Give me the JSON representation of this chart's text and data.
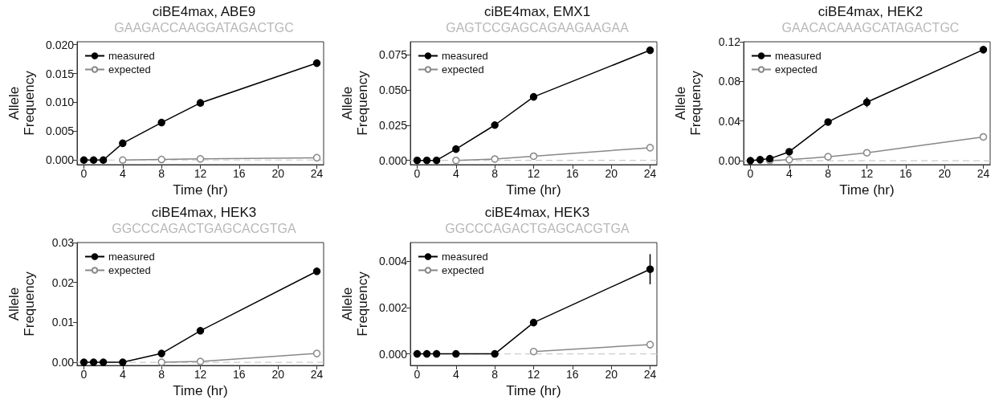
{
  "chart_data": [
    {
      "type": "line",
      "title": "ciBE4max, ABE9",
      "subtitle": "GAAGACCAAGGATAGACTGC",
      "xlabel": "Time (hr)",
      "ylabel": "Allele Frequency",
      "x": [
        0,
        1,
        2,
        4,
        8,
        12,
        24
      ],
      "series": [
        {
          "name": "measured",
          "color": "#000000",
          "values": [
            0,
            0,
            0,
            0.0029,
            0.0065,
            0.0099,
            0.0168
          ],
          "errors": [
            null,
            null,
            null,
            null,
            null,
            null,
            0.0004
          ]
        },
        {
          "name": "expected",
          "color": "#888888",
          "values": [
            null,
            null,
            null,
            0.0,
            0.0001,
            0.0002,
            0.0004
          ]
        }
      ],
      "xlim": [
        -0.7,
        24.7
      ],
      "xticks": [
        0,
        4,
        8,
        12,
        16,
        20,
        24
      ],
      "ylim": [
        -0.0008,
        0.0205
      ],
      "yticks": [
        {
          "value": 0,
          "label": "0.000"
        },
        {
          "value": 0.005,
          "label": "0.005"
        },
        {
          "value": 0.01,
          "label": "0.010"
        },
        {
          "value": 0.015,
          "label": "0.015"
        },
        {
          "value": 0.02,
          "label": "0.020"
        }
      ],
      "ref_lines": [
        {
          "axis": "y",
          "value": 0,
          "color": "#cccccc",
          "line_style": "dashed"
        }
      ],
      "legend": "top left",
      "marker": "circle",
      "grid": false
    },
    {
      "type": "line",
      "title": "ciBE4max, EMX1",
      "subtitle": "GAGTCCGAGCAGAAGAAGAA",
      "xlabel": "Time (hr)",
      "ylabel": "Allele Frequency",
      "x": [
        0,
        1,
        2,
        4,
        8,
        12,
        24
      ],
      "series": [
        {
          "name": "measured",
          "color": "#000000",
          "values": [
            0,
            0,
            0,
            0.008,
            0.025,
            0.045,
            0.078
          ],
          "errors": [
            null,
            null,
            null,
            null,
            null,
            null,
            0.0015
          ]
        },
        {
          "name": "expected",
          "color": "#888888",
          "values": [
            null,
            null,
            null,
            0.0,
            0.001,
            0.003,
            0.009
          ]
        }
      ],
      "xlim": [
        -0.7,
        24.7
      ],
      "xticks": [
        0,
        4,
        8,
        12,
        16,
        20,
        24
      ],
      "ylim": [
        -0.003,
        0.084
      ],
      "yticks": [
        {
          "value": 0,
          "label": "0.000"
        },
        {
          "value": 0.025,
          "label": "0.025"
        },
        {
          "value": 0.05,
          "label": "0.050"
        },
        {
          "value": 0.075,
          "label": "0.075"
        }
      ],
      "ref_lines": [
        {
          "axis": "y",
          "value": 0,
          "color": "#cccccc",
          "line_style": "dashed"
        }
      ],
      "legend": "top left",
      "marker": "circle",
      "grid": false
    },
    {
      "type": "line",
      "title": "ciBE4max, HEK2",
      "subtitle": "GAACACAAAGCATAGACTGC",
      "xlabel": "Time (hr)",
      "ylabel": "Allele Frequency",
      "x": [
        0,
        1,
        2,
        4,
        8,
        12,
        24
      ],
      "series": [
        {
          "name": "measured",
          "color": "#000000",
          "values": [
            0,
            0.001,
            0.002,
            0.009,
            0.039,
            0.059,
            0.112
          ],
          "errors": [
            null,
            null,
            null,
            null,
            null,
            0.005,
            null
          ]
        },
        {
          "name": "expected",
          "color": "#888888",
          "values": [
            null,
            null,
            0,
            0.001,
            0.004,
            0.008,
            0.024
          ]
        }
      ],
      "xlim": [
        -0.7,
        24.7
      ],
      "xticks": [
        0,
        4,
        8,
        12,
        16,
        20,
        24
      ],
      "ylim": [
        -0.004,
        0.12
      ],
      "yticks": [
        {
          "value": 0,
          "label": "0.00"
        },
        {
          "value": 0.04,
          "label": "0.04"
        },
        {
          "value": 0.08,
          "label": "0.08"
        },
        {
          "value": 0.12,
          "label": "0.12"
        }
      ],
      "ref_lines": [
        {
          "axis": "y",
          "value": 0,
          "color": "#cccccc",
          "line_style": "dashed"
        }
      ],
      "legend": "top left",
      "marker": "circle",
      "grid": false
    },
    {
      "type": "line",
      "title": "ciBE4max, HEK3",
      "subtitle": "GGCCCAGACTGAGCACGTGA",
      "xlabel": "Time (hr)",
      "ylabel": "Allele Frequency",
      "x": [
        0,
        1,
        2,
        4,
        8,
        12,
        24
      ],
      "series": [
        {
          "name": "measured",
          "color": "#000000",
          "values": [
            0,
            0,
            0,
            0,
            0.0022,
            0.0079,
            0.0228
          ]
        },
        {
          "name": "expected",
          "color": "#888888",
          "values": [
            null,
            null,
            null,
            null,
            0,
            0.0002,
            0.0022
          ]
        }
      ],
      "xlim": [
        -0.7,
        24.7
      ],
      "xticks": [
        0,
        4,
        8,
        12,
        16,
        20,
        24
      ],
      "ylim": [
        -0.0008,
        0.03
      ],
      "yticks": [
        {
          "value": 0,
          "label": "0.00"
        },
        {
          "value": 0.01,
          "label": "0.01"
        },
        {
          "value": 0.02,
          "label": "0.02"
        },
        {
          "value": 0.03,
          "label": "0.03"
        }
      ],
      "ref_lines": [
        {
          "axis": "y",
          "value": 0,
          "color": "#cccccc",
          "line_style": "dashed"
        }
      ],
      "legend": "top left",
      "marker": "circle",
      "grid": false
    },
    {
      "type": "line",
      "title": "ciBE4max, HEK3",
      "subtitle": "GGCCCAGACTGAGCACGTGA",
      "xlabel": "Time (hr)",
      "ylabel": "Allele Frequency",
      "x": [
        0,
        1,
        2,
        4,
        8,
        12,
        24
      ],
      "series": [
        {
          "name": "measured",
          "color": "#000000",
          "values": [
            0,
            0,
            0,
            0,
            0,
            0.00135,
            0.00365
          ],
          "errors": [
            null,
            null,
            null,
            null,
            null,
            null,
            [
              0.003,
              0.0043
            ]
          ]
        },
        {
          "name": "expected",
          "color": "#888888",
          "values": [
            null,
            null,
            null,
            null,
            null,
            0.0001,
            0.0004
          ]
        }
      ],
      "xlim": [
        -0.7,
        24.7
      ],
      "xticks": [
        0,
        4,
        8,
        12,
        16,
        20,
        24
      ],
      "ylim": [
        -0.0005,
        0.0048
      ],
      "yticks": [
        {
          "value": 0,
          "label": "0.000"
        },
        {
          "value": 0.002,
          "label": "0.002"
        },
        {
          "value": 0.004,
          "label": "0.004"
        }
      ],
      "ref_lines": [
        {
          "axis": "y",
          "value": 0,
          "color": "#cccccc",
          "line_style": "dashed"
        }
      ],
      "legend": "top left",
      "marker": "circle",
      "grid": false
    }
  ]
}
